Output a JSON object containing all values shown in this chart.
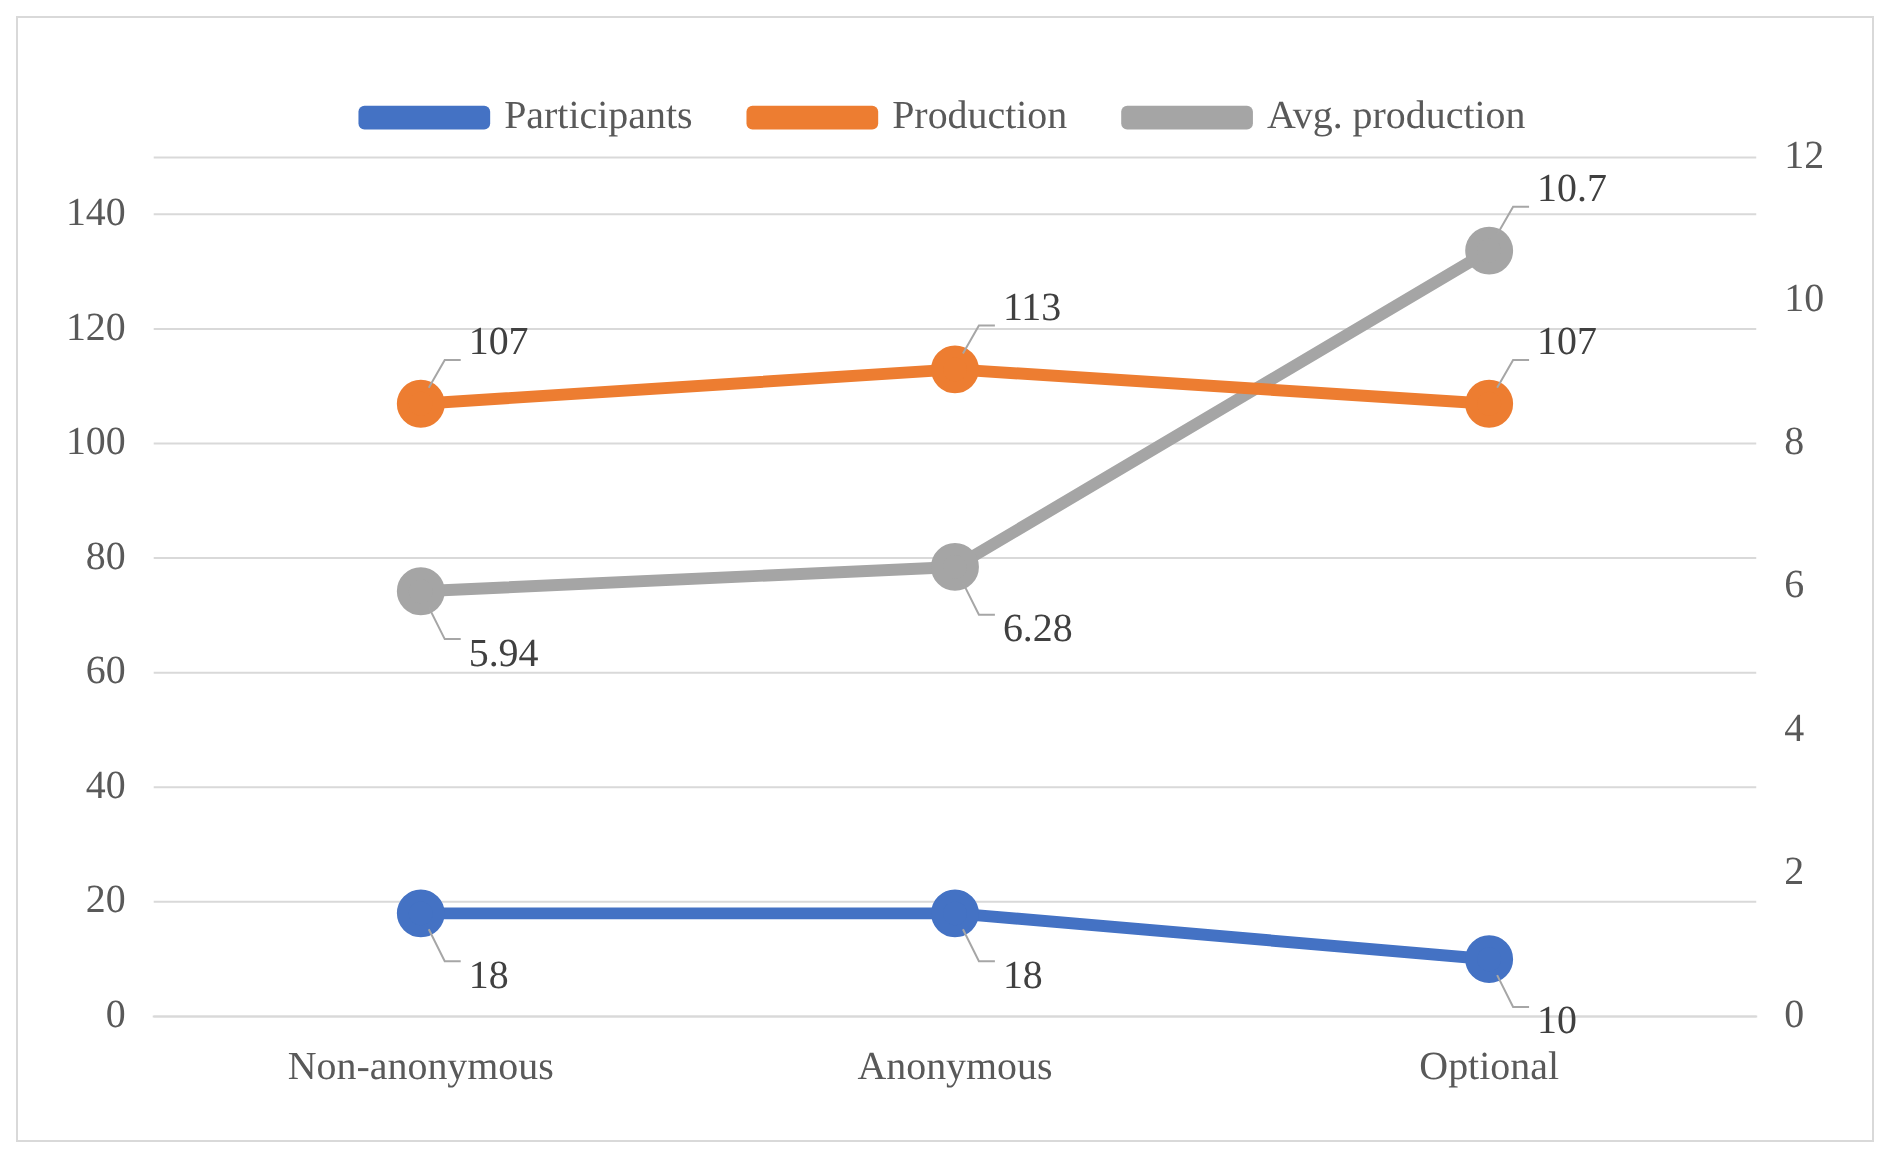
{
  "chart_data": {
    "type": "line",
    "categories": [
      "Non-anonymous",
      "Anonymous",
      "Optional"
    ],
    "series": [
      {
        "name": "Participants",
        "color": "#4472c4",
        "values": [
          18,
          18,
          10
        ]
      },
      {
        "name": "Production",
        "color": "#ed7d31",
        "values": [
          107,
          113,
          107
        ]
      },
      {
        "name": "Avg. production",
        "color": "#a5a5a5",
        "values": [
          5.94,
          6.28,
          10.7
        ],
        "axis": "y2"
      }
    ],
    "ylim": [
      0,
      150
    ],
    "yticks": [
      0,
      20,
      40,
      60,
      80,
      100,
      120,
      140
    ],
    "y2lim": [
      0,
      12
    ],
    "y2ticks": [
      0,
      2,
      4,
      6,
      8,
      10,
      12
    ],
    "grid": "y",
    "legend": "top",
    "marker": "circle",
    "data_labels": true
  }
}
